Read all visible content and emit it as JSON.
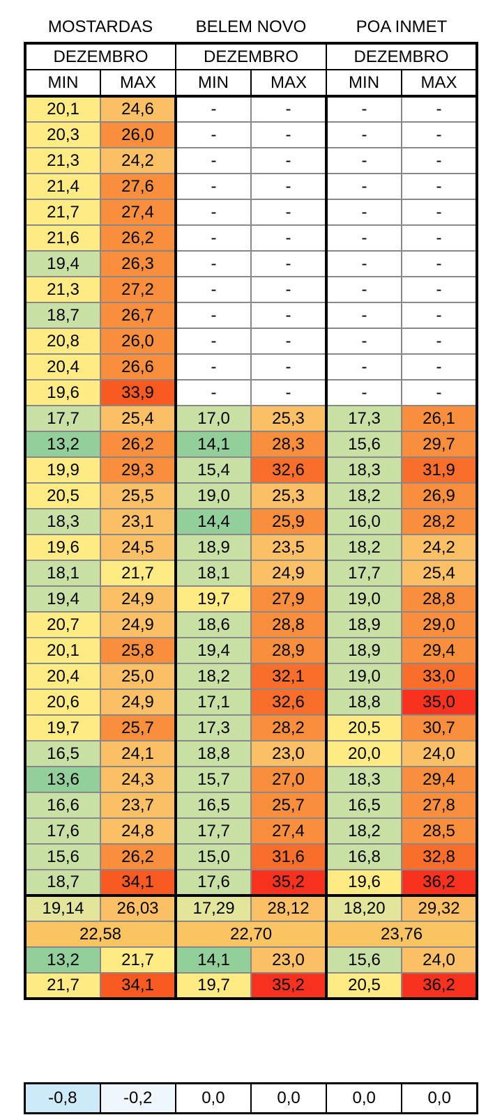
{
  "stations": [
    {
      "name": "MOSTARDAS",
      "month": "DEZEMBRO",
      "min_label": "MIN",
      "max_label": "MAX"
    },
    {
      "name": "BELEM NOVO",
      "month": "DEZEMBRO",
      "min_label": "MIN",
      "max_label": "MAX"
    },
    {
      "name": "POA INMET",
      "month": "DEZEMBRO",
      "min_label": "MIN",
      "max_label": "MAX"
    }
  ],
  "daily": [
    [
      "20,1",
      "24,6",
      "-",
      "-",
      "-",
      "-"
    ],
    [
      "20,3",
      "26,0",
      "-",
      "-",
      "-",
      "-"
    ],
    [
      "21,3",
      "24,2",
      "-",
      "-",
      "-",
      "-"
    ],
    [
      "21,4",
      "27,6",
      "-",
      "-",
      "-",
      "-"
    ],
    [
      "21,7",
      "27,4",
      "-",
      "-",
      "-",
      "-"
    ],
    [
      "21,6",
      "26,2",
      "-",
      "-",
      "-",
      "-"
    ],
    [
      "19,4",
      "26,3",
      "-",
      "-",
      "-",
      "-"
    ],
    [
      "21,3",
      "27,2",
      "-",
      "-",
      "-",
      "-"
    ],
    [
      "18,7",
      "26,7",
      "-",
      "-",
      "-",
      "-"
    ],
    [
      "20,8",
      "26,0",
      "-",
      "-",
      "-",
      "-"
    ],
    [
      "20,4",
      "26,6",
      "-",
      "-",
      "-",
      "-"
    ],
    [
      "19,6",
      "33,9",
      "-",
      "-",
      "-",
      "-"
    ],
    [
      "17,7",
      "25,4",
      "17,0",
      "25,3",
      "17,3",
      "26,1"
    ],
    [
      "13,2",
      "26,2",
      "14,1",
      "28,3",
      "15,6",
      "29,7"
    ],
    [
      "19,9",
      "29,3",
      "15,4",
      "32,6",
      "18,3",
      "31,9"
    ],
    [
      "20,5",
      "25,5",
      "19,0",
      "25,3",
      "18,2",
      "26,9"
    ],
    [
      "18,3",
      "23,1",
      "14,4",
      "25,9",
      "16,0",
      "28,2"
    ],
    [
      "19,6",
      "24,5",
      "18,9",
      "23,5",
      "18,2",
      "24,2"
    ],
    [
      "18,1",
      "21,7",
      "18,1",
      "24,9",
      "17,7",
      "25,4"
    ],
    [
      "19,4",
      "24,9",
      "19,7",
      "27,9",
      "19,0",
      "28,8"
    ],
    [
      "20,7",
      "24,9",
      "18,6",
      "28,8",
      "18,9",
      "29,0"
    ],
    [
      "20,1",
      "25,8",
      "19,4",
      "28,9",
      "18,9",
      "29,4"
    ],
    [
      "20,4",
      "25,0",
      "18,2",
      "32,1",
      "19,0",
      "33,0"
    ],
    [
      "20,6",
      "24,9",
      "17,1",
      "32,6",
      "18,8",
      "35,0"
    ],
    [
      "19,7",
      "25,7",
      "17,3",
      "28,2",
      "20,5",
      "30,7"
    ],
    [
      "16,5",
      "24,1",
      "18,8",
      "23,0",
      "20,0",
      "24,0"
    ],
    [
      "13,6",
      "24,3",
      "15,7",
      "27,0",
      "18,3",
      "29,4"
    ],
    [
      "16,6",
      "23,7",
      "16,5",
      "25,7",
      "16,5",
      "27,8"
    ],
    [
      "17,6",
      "24,8",
      "17,7",
      "27,4",
      "18,2",
      "28,5"
    ],
    [
      "15,6",
      "26,2",
      "15,0",
      "31,6",
      "16,8",
      "32,8"
    ],
    [
      "18,7",
      "34,1",
      "17,6",
      "35,2",
      "19,6",
      "36,2"
    ]
  ],
  "averages": [
    "19,14",
    "26,03",
    "17,29",
    "28,12",
    "18,20",
    "29,32"
  ],
  "overall_means": [
    "22,58",
    "22,70",
    "23,76"
  ],
  "lowest": [
    "13,2",
    "21,7",
    "14,1",
    "23,0",
    "15,6",
    "24,0"
  ],
  "highest": [
    "21,7",
    "34,1",
    "19,7",
    "35,2",
    "20,5",
    "36,2"
  ],
  "deviations": [
    "-0,8",
    "-0,2",
    "0,0",
    "0,0",
    "0,0",
    "0,0"
  ],
  "colors": {
    "cool_min": "#93cf9a",
    "cool_mid": "#c9e0a4",
    "neutral": "#feeb84",
    "warm": "#fbbf65",
    "hot": "#f98f3c",
    "hottest": "#f8321f",
    "mean_bar": "#fbc462",
    "dev_cold": "#cdeaf8",
    "dev_zero": "#ffffff"
  }
}
